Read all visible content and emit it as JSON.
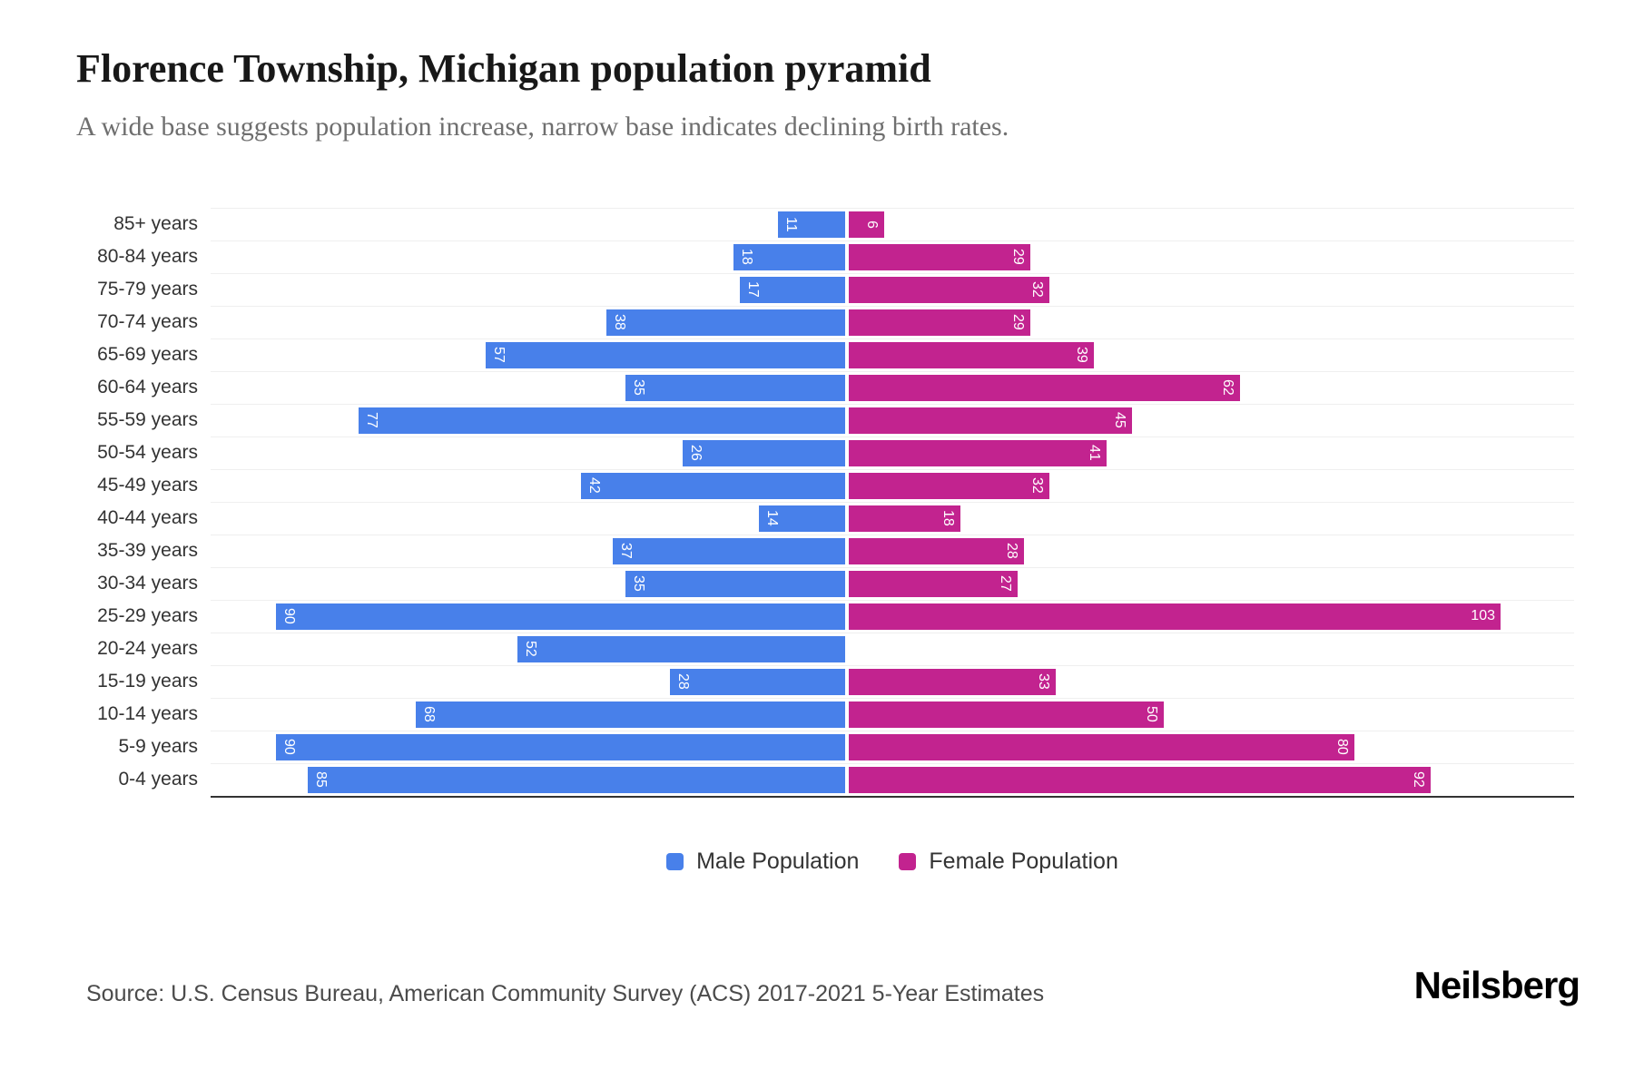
{
  "chart_data": {
    "type": "bar",
    "variant": "population-pyramid",
    "title": "Florence Township, Michigan population pyramid",
    "subtitle": "A wide base suggests population increase, narrow base indicates declining birth rates.",
    "categories": [
      "85+ years",
      "80-84 years",
      "75-79 years",
      "70-74 years",
      "65-69 years",
      "60-64 years",
      "55-59 years",
      "50-54 years",
      "45-49 years",
      "40-44 years",
      "35-39 years",
      "30-34 years",
      "25-29 years",
      "20-24 years",
      "15-19 years",
      "10-14 years",
      "5-9 years",
      "0-4 years"
    ],
    "series": [
      {
        "name": "Male Population",
        "side": "left",
        "color": "#4880ea",
        "values": [
          11,
          18,
          17,
          38,
          57,
          35,
          77,
          26,
          42,
          14,
          37,
          35,
          90,
          52,
          28,
          68,
          90,
          85
        ]
      },
      {
        "name": "Female Population",
        "side": "right",
        "color": "#c2238f",
        "values": [
          6,
          29,
          32,
          29,
          39,
          62,
          45,
          41,
          32,
          18,
          28,
          27,
          103,
          0,
          33,
          50,
          80,
          92
        ]
      }
    ],
    "value_labels": "inside outer end, white, rotated 90deg (horizontal for 3-digit values)",
    "xlim_each_side": [
      0,
      113
    ],
    "grid": "light horizontal lines at category boundaries",
    "axis_line": "solid dark bottom axis",
    "legend_position": "bottom-center"
  },
  "legend": {
    "items": [
      {
        "label": "Male Population",
        "color": "#4880ea"
      },
      {
        "label": "Female Population",
        "color": "#c2238f"
      }
    ]
  },
  "footer": {
    "source": "Source: U.S. Census Bureau, American Community Survey (ACS) 2017-2021 5-Year Estimates",
    "brand": "Neilsberg"
  },
  "colors": {
    "male": "#4880ea",
    "female": "#c2238f",
    "gridline": "#efefef",
    "axis": "#333333",
    "subtitle": "#6f6f6f"
  }
}
